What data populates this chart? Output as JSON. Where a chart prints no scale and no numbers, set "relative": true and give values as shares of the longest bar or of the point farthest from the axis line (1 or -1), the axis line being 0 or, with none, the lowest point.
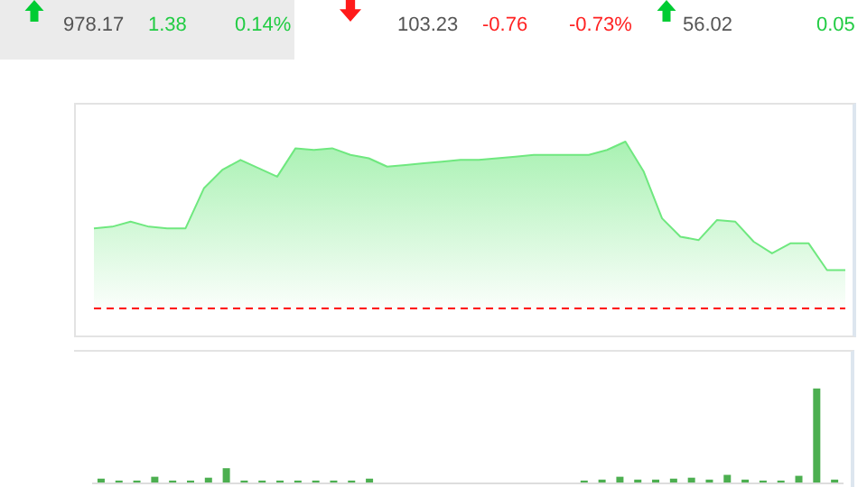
{
  "chart_data": [
    {
      "type": "other",
      "annotations": [
        "978.17",
        "1.38",
        "0.14%",
        "103.23",
        "-0.76",
        "-0.73%",
        "56.02",
        "0.05"
      ]
    },
    {
      "type": "area",
      "relative": true,
      "categories": [
        null,
        null,
        null,
        null,
        null,
        null,
        null,
        null,
        null,
        null,
        null,
        null,
        null,
        null,
        null,
        null,
        null,
        null,
        null,
        null,
        null,
        null,
        null,
        null,
        null,
        null,
        null,
        null,
        null,
        null,
        null,
        null,
        null,
        null,
        null,
        null,
        null,
        null,
        null,
        null,
        null,
        null
      ],
      "series": [
        {
          "color": "#6fe87f",
          "values": [
            0.48,
            0.49,
            0.52,
            0.49,
            0.48,
            0.48,
            0.72,
            0.83,
            0.89,
            0.84,
            0.79,
            0.96,
            0.95,
            0.96,
            0.92,
            0.9,
            0.85,
            0.86,
            0.87,
            0.88,
            0.89,
            0.89,
            0.9,
            0.91,
            0.92,
            0.92,
            0.92,
            0.92,
            0.95,
            1,
            0.82,
            0.54,
            0.43,
            0.41,
            0.53,
            0.52,
            0.4,
            0.33,
            0.39,
            0.39,
            0.23,
            0.23
          ]
        }
      ]
    },
    {
      "type": "bar",
      "relative": true,
      "categories": [
        null,
        null,
        null,
        null,
        null,
        null,
        null,
        null,
        null,
        null,
        null,
        null,
        null,
        null,
        null,
        null,
        null,
        null,
        null,
        null,
        null,
        null,
        null,
        null,
        null,
        null,
        null,
        null,
        null,
        null,
        null,
        null,
        null,
        null,
        null,
        null,
        null,
        null,
        null,
        null,
        null,
        null
      ],
      "series": [
        {
          "color": "#4caf50",
          "values": [
            0.05,
            0.03,
            0.03,
            0.07,
            0.03,
            0.03,
            0.06,
            0.16,
            0.03,
            0.03,
            0.03,
            0.03,
            0.03,
            0.03,
            0.03,
            0.05,
            null,
            null,
            null,
            null,
            null,
            null,
            null,
            null,
            null,
            null,
            null,
            0.03,
            0.04,
            0.07,
            0.04,
            0.04,
            0.05,
            0.06,
            0.04,
            0.09,
            0.04,
            0.03,
            0.03,
            0.08,
            1,
            0.04
          ]
        }
      ]
    }
  ]
}
